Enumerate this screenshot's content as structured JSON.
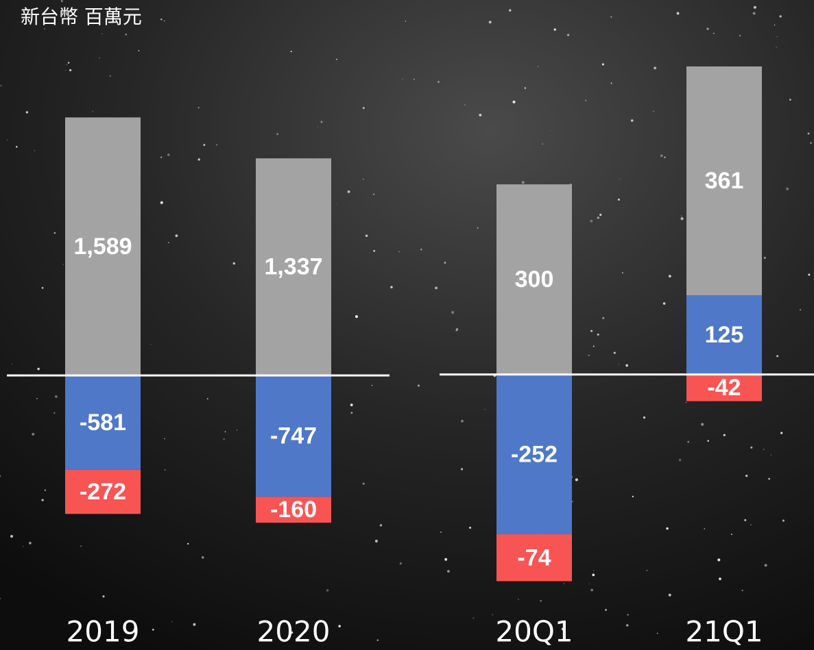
{
  "chart_data": [
    {
      "type": "bar",
      "stacked": true,
      "ylabel": "新台幣 百萬元",
      "categories": [
        "2019",
        "2020"
      ],
      "series": [
        {
          "color": "#4f78c8",
          "values": [
            -581,
            -747
          ]
        },
        {
          "color": "#f95454",
          "values": [
            -272,
            -160
          ]
        },
        {
          "color": "#a3a3a3",
          "values": [
            1589,
            1337
          ],
          "value_labels": [
            "1,589",
            "1,337"
          ]
        }
      ],
      "ylim": [
        -1400,
        2270
      ]
    },
    {
      "type": "bar",
      "stacked": true,
      "categories": [
        "20Q1",
        "21Q1"
      ],
      "series": [
        {
          "color": "#4f78c8",
          "values": [
            -252,
            125
          ]
        },
        {
          "color": "#f95454",
          "values": [
            -74,
            -42
          ]
        },
        {
          "color": "#a3a3a3",
          "values": [
            300,
            361
          ]
        }
      ],
      "ylim": [
        -360,
        580
      ]
    }
  ]
}
